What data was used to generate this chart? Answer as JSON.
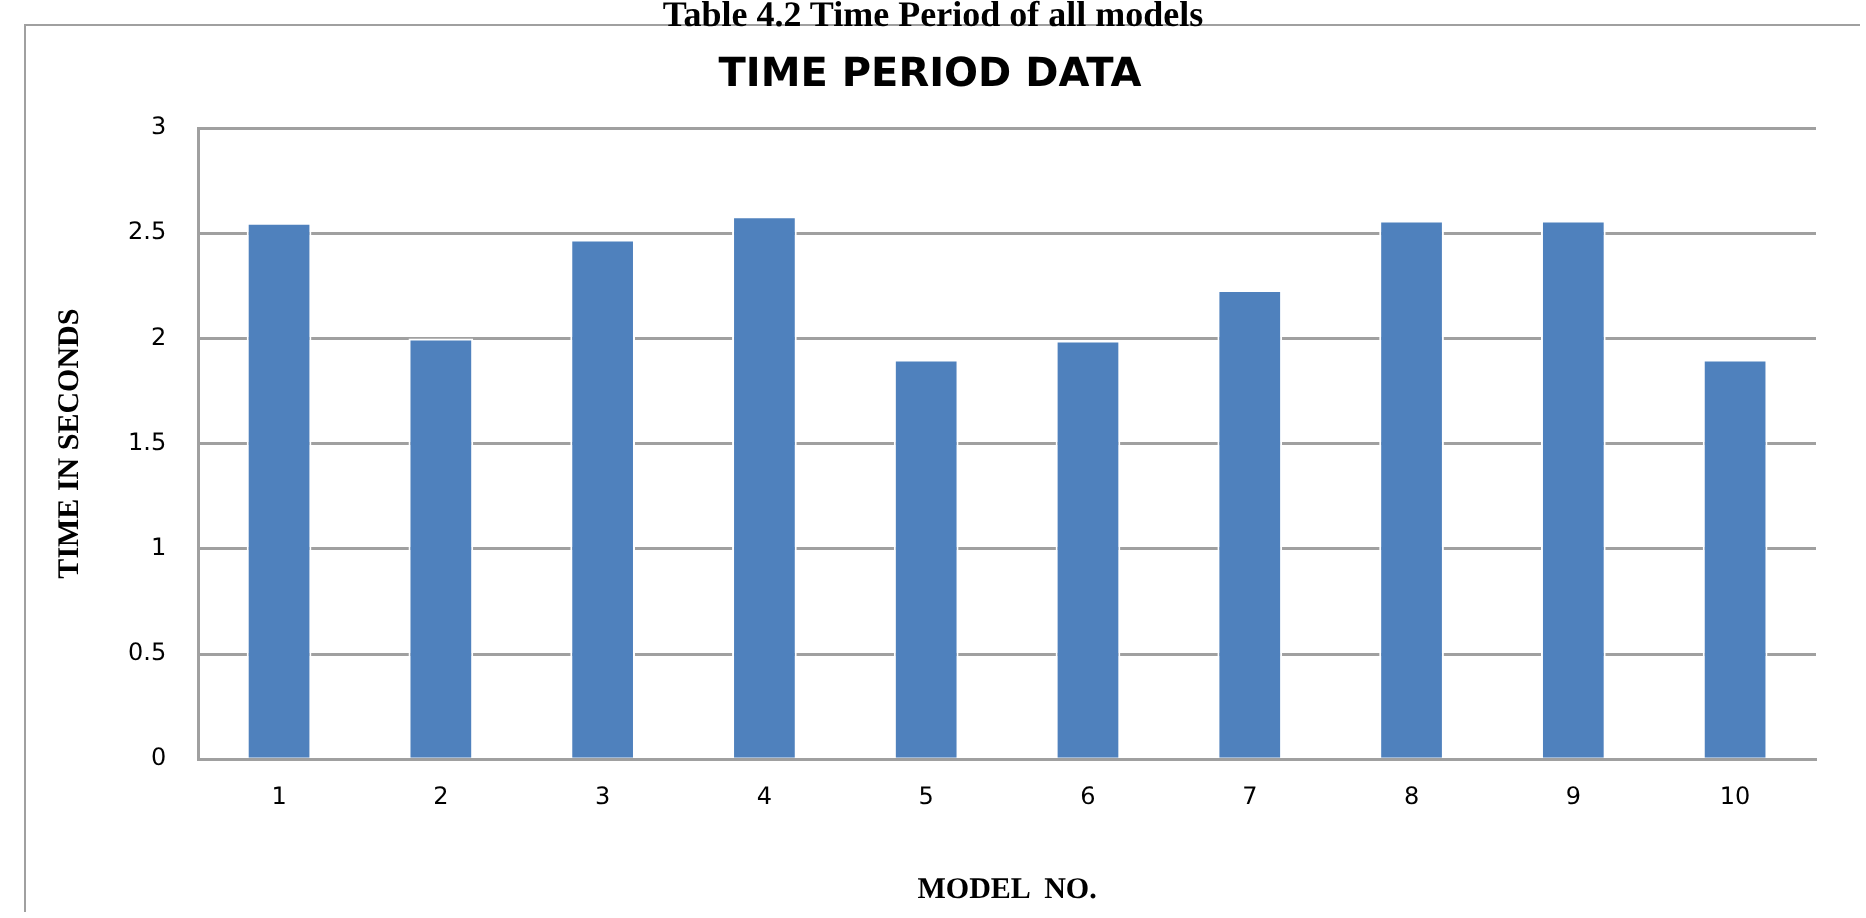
{
  "chart_data": {
    "type": "bar",
    "title": "TIME PERIOD DATA",
    "xlabel": "MODEL  NO.",
    "ylabel": "TIME IN SECONDS",
    "annotations": [
      "Table 4.2 Time Period of all models"
    ],
    "categories": [
      "1",
      "2",
      "3",
      "4",
      "5",
      "6",
      "7",
      "8",
      "9",
      "10"
    ],
    "values": [
      2.55,
      2.0,
      2.47,
      2.58,
      1.9,
      1.99,
      2.23,
      2.56,
      2.56,
      1.9
    ],
    "color": "#4f81bd",
    "ylim": [
      0,
      3
    ],
    "yticks": [
      0,
      0.5,
      1,
      1.5,
      2,
      2.5,
      3
    ],
    "grid": "y",
    "legend": false
  }
}
